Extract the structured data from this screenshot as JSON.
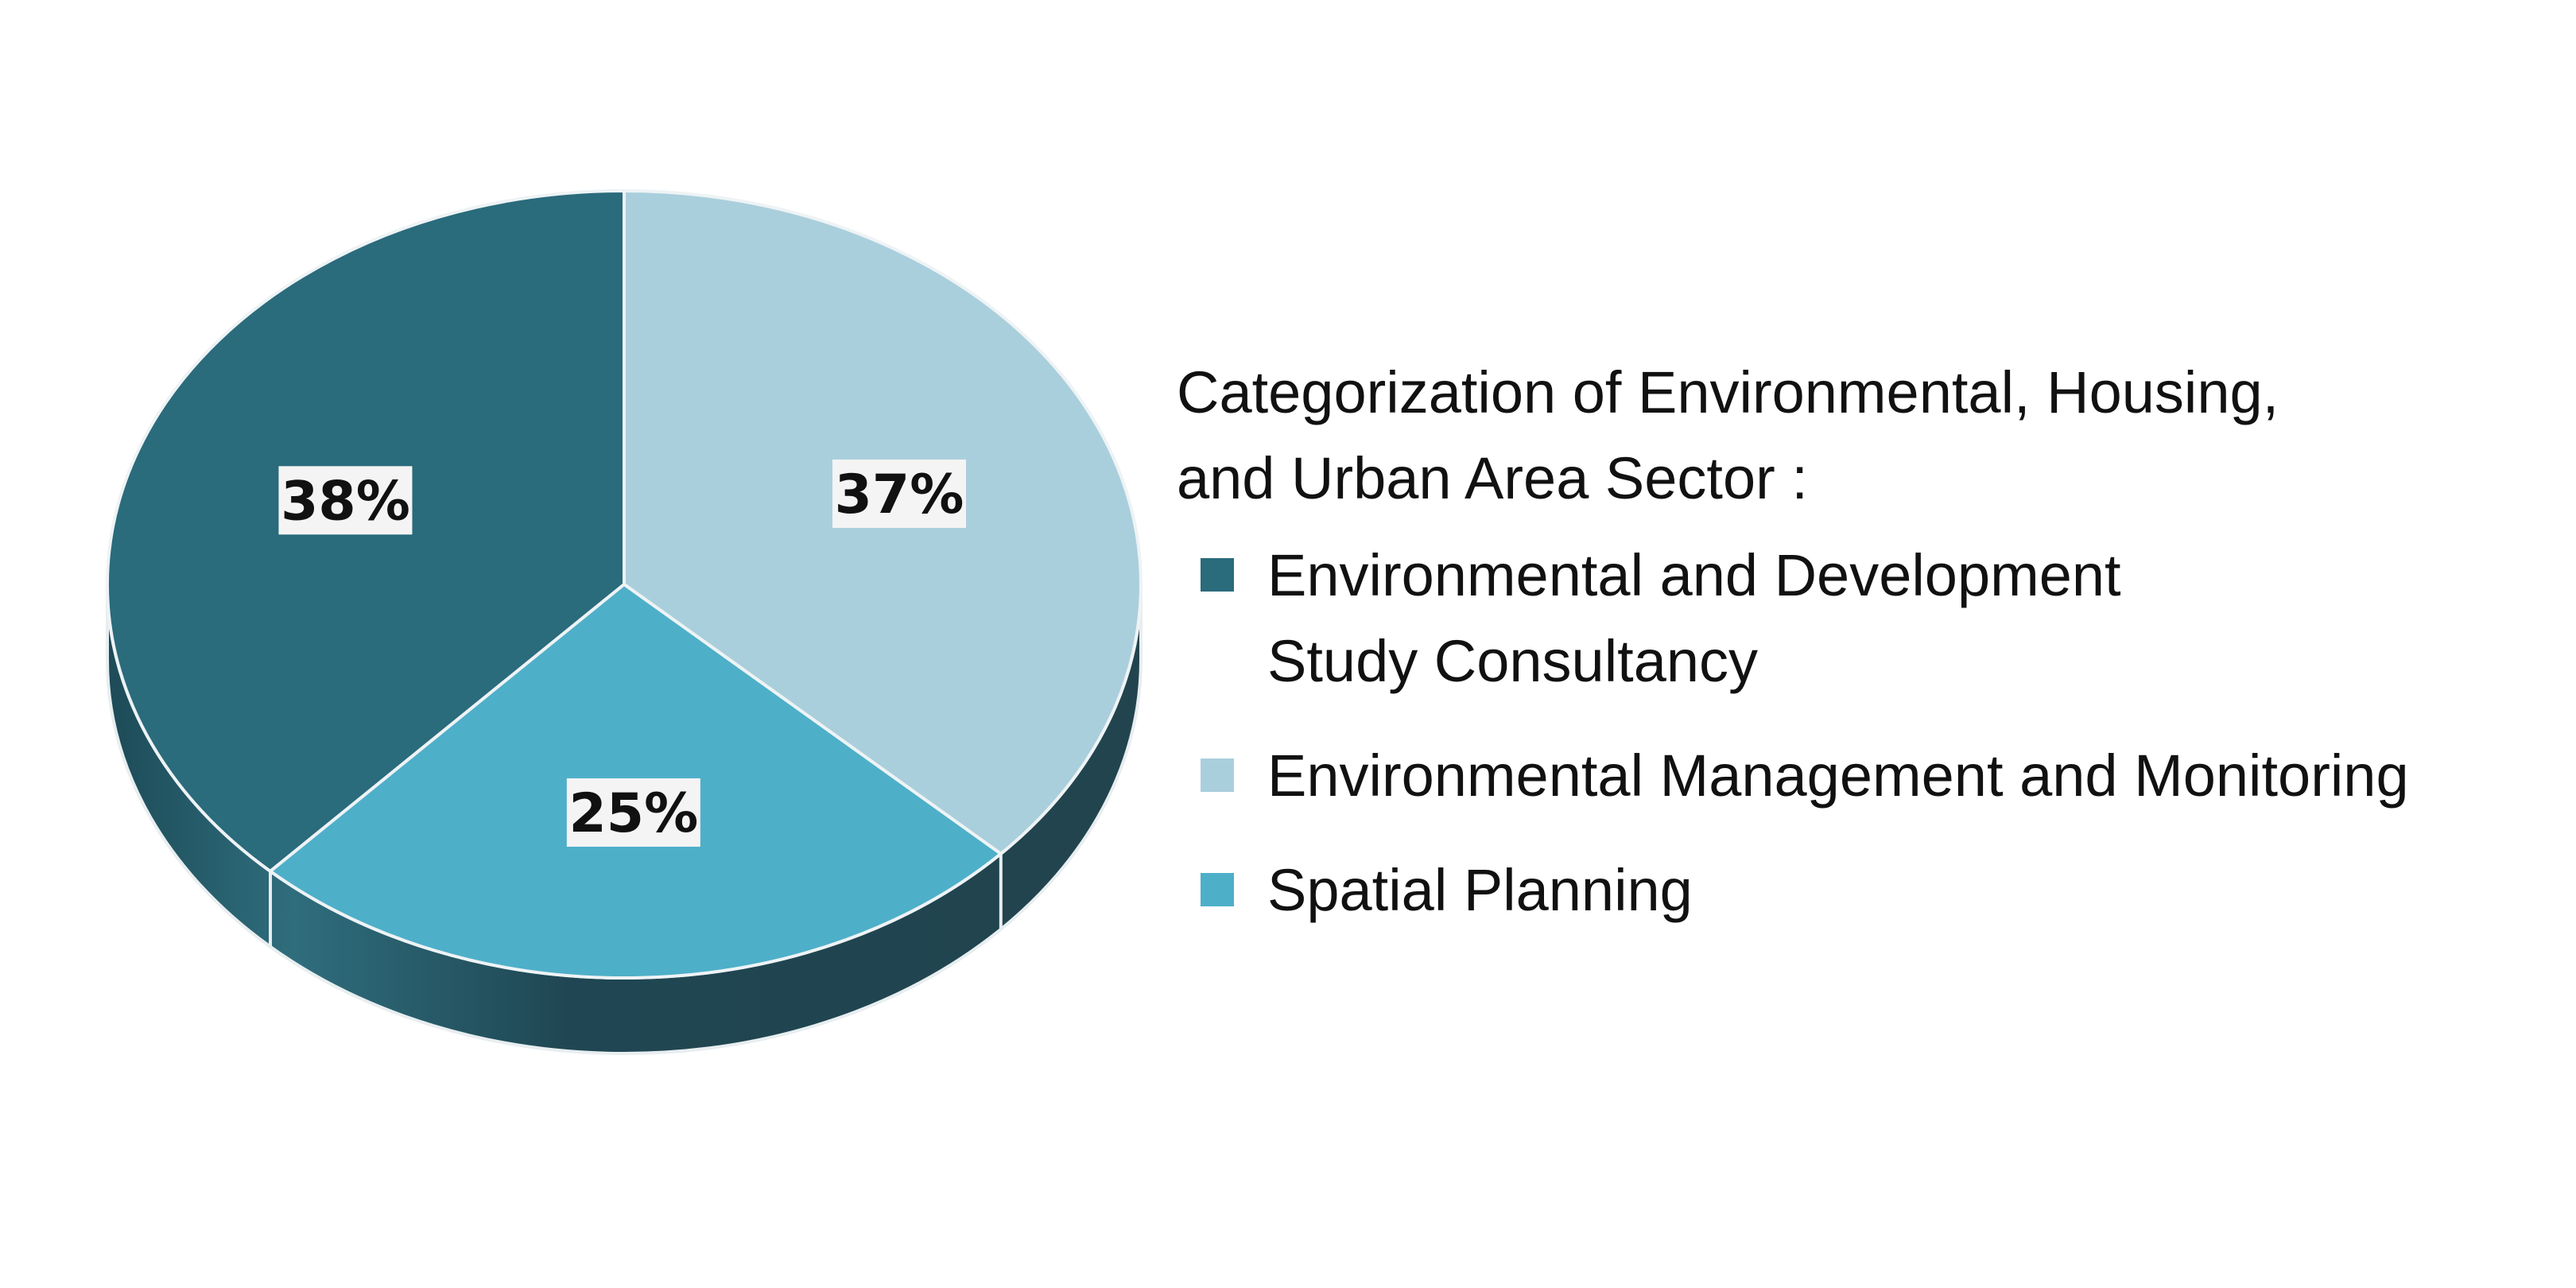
{
  "chart_data": {
    "type": "pie",
    "style": "3d",
    "title": "Categorization of Environmental, Housing,\nand Urban Area Sector :",
    "legend_position": "right",
    "slices": [
      {
        "label": "Environmental  and  Development\nStudy Consultancy",
        "value": 38,
        "display": "38%",
        "color": "#2a6b7c"
      },
      {
        "label": "Environmental Management and Monitoring",
        "value": 37,
        "display": "37%",
        "color": "#aacfdc"
      },
      {
        "label": "Spatial Planning",
        "value": 25,
        "display": "25%",
        "color": "#4eafc9"
      }
    ]
  }
}
